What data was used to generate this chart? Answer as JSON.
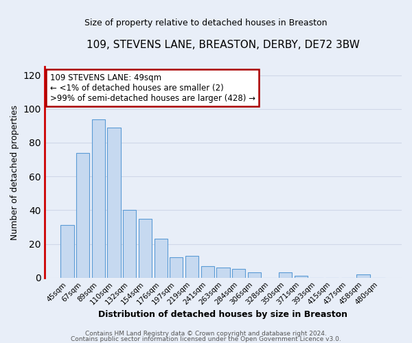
{
  "title": "109, STEVENS LANE, BREASTON, DERBY, DE72 3BW",
  "subtitle": "Size of property relative to detached houses in Breaston",
  "xlabel": "Distribution of detached houses by size in Breaston",
  "ylabel": "Number of detached properties",
  "bar_color": "#c6d9f0",
  "bar_edge_color": "#5b9bd5",
  "categories": [
    "45sqm",
    "67sqm",
    "89sqm",
    "110sqm",
    "132sqm",
    "154sqm",
    "176sqm",
    "197sqm",
    "219sqm",
    "241sqm",
    "263sqm",
    "284sqm",
    "306sqm",
    "328sqm",
    "350sqm",
    "371sqm",
    "393sqm",
    "415sqm",
    "437sqm",
    "458sqm",
    "480sqm"
  ],
  "values": [
    31,
    74,
    94,
    89,
    40,
    35,
    23,
    12,
    13,
    7,
    6,
    5,
    3,
    0,
    3,
    1,
    0,
    0,
    0,
    2,
    0
  ],
  "ylim": [
    0,
    125
  ],
  "yticks": [
    0,
    20,
    40,
    60,
    80,
    100,
    120
  ],
  "annotation_text_line1": "109 STEVENS LANE: 49sqm",
  "annotation_text_line2": "← <1% of detached houses are smaller (2)",
  "annotation_text_line3": ">99% of semi-detached houses are larger (428) →",
  "marker_bar_index": 0,
  "marker_bar_color": "#cc0000",
  "footer_line1": "Contains HM Land Registry data © Crown copyright and database right 2024.",
  "footer_line2": "Contains public sector information licensed under the Open Government Licence v3.0.",
  "background_color": "#e8eef8",
  "plot_bg_color": "#e8eef8",
  "grid_color": "#d0d8e8",
  "annotation_box_color": "#ffffff",
  "annotation_box_edge_color": "#aa0000",
  "title_fontsize": 11,
  "subtitle_fontsize": 9,
  "xlabel_fontsize": 9,
  "ylabel_fontsize": 9,
  "tick_fontsize": 7.5,
  "annotation_fontsize": 8.5,
  "footer_fontsize": 6.5
}
